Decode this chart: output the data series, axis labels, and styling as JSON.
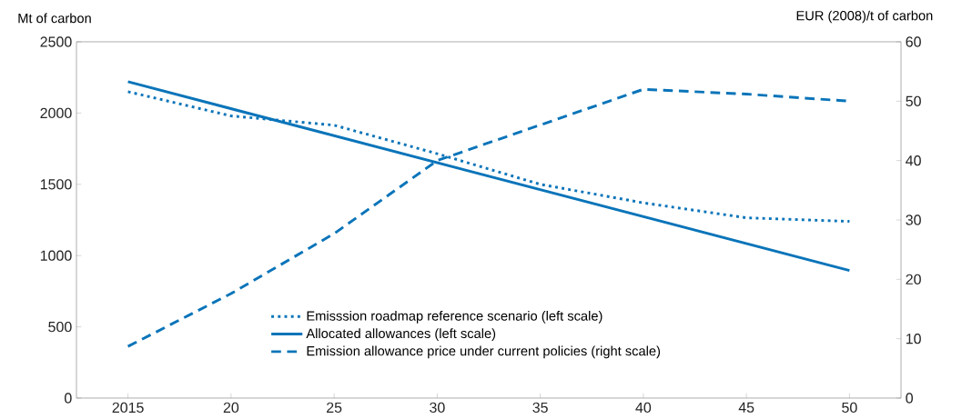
{
  "chart_data": {
    "type": "line",
    "ylabel": "Mt of carbon",
    "y2label": "EUR (2008)/t of carbon",
    "x": [
      2015,
      2020,
      2025,
      2030,
      2035,
      2040,
      2045,
      2050
    ],
    "xlim": [
      2012.5,
      2052.5
    ],
    "xticks": [
      {
        "value": 2015,
        "label": "2015"
      },
      {
        "value": 2020,
        "label": "20"
      },
      {
        "value": 2025,
        "label": "25"
      },
      {
        "value": 2030,
        "label": "30"
      },
      {
        "value": 2035,
        "label": "35"
      },
      {
        "value": 2040,
        "label": "40"
      },
      {
        "value": 2045,
        "label": "45"
      },
      {
        "value": 2050,
        "label": "50"
      }
    ],
    "ylim": [
      0,
      2500
    ],
    "yticks": [
      0,
      500,
      1000,
      1500,
      2000,
      2500
    ],
    "y2lim": [
      0,
      60
    ],
    "y2ticks": [
      0,
      10,
      20,
      30,
      40,
      50,
      60
    ],
    "series": [
      {
        "name": "Emisssion roadmap reference scenario (left scale)",
        "color": "#0a74b9",
        "line_style": "dotted",
        "axis": "y",
        "values": [
          2150,
          1980,
          1915,
          1715,
          1500,
          1370,
          1265,
          1240
        ]
      },
      {
        "name": "Allocated allowances (left scale)",
        "color": "#0a74b9",
        "line_style": "solid",
        "axis": "y",
        "x": [
          2015,
          2050
        ],
        "values": [
          2220,
          895
        ]
      },
      {
        "name": "Emission allowance price under current policies (right scale)",
        "color": "#0a74b9",
        "line_style": "dashed",
        "axis": "y2",
        "values": [
          8.7,
          17.6,
          27.7,
          40,
          46,
          52,
          51.2,
          50
        ]
      }
    ],
    "legend": "bottom",
    "grid": false
  }
}
